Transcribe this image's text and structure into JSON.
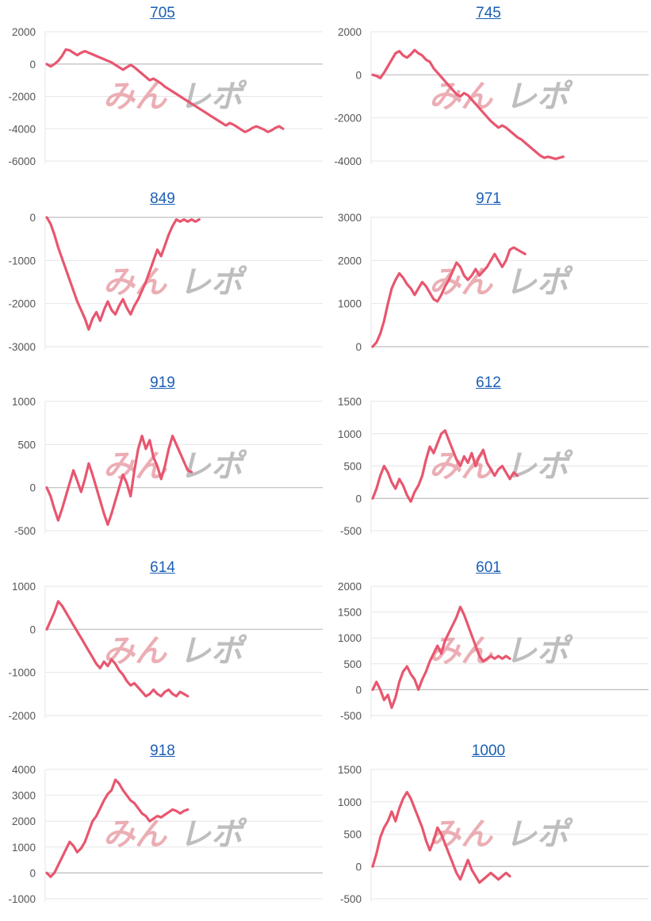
{
  "colors": {
    "line": "#e8566f",
    "grid": "#e6e6e6",
    "zero_line": "#bdbdbd",
    "title_link": "#1a5fb4",
    "tick_text": "#555555",
    "watermark_pink": "#e8a0a8",
    "watermark_gray": "#b3b3b3"
  },
  "watermark": {
    "text": "みんレポ"
  },
  "chart_data": [
    {
      "type": "line",
      "title": "705",
      "ylim": [
        -6000,
        2000
      ],
      "yticks": [
        "2000",
        "0",
        "-2000",
        "-4000",
        "-6000"
      ],
      "ytick_values": [
        2000,
        0,
        -2000,
        -4000,
        -6000
      ],
      "grid": true,
      "x": [
        0,
        5,
        10,
        15,
        20,
        25,
        30,
        35,
        40,
        45,
        50,
        55,
        60,
        65,
        70,
        75,
        80,
        85,
        90,
        95,
        100,
        105,
        110,
        115,
        120,
        125,
        130,
        135,
        140,
        145,
        150,
        155,
        160,
        165,
        170,
        175,
        180,
        185,
        190,
        195,
        200,
        205,
        210,
        215,
        220,
        225,
        230,
        235,
        240,
        245,
        250,
        255,
        260,
        265,
        270,
        275,
        280,
        285,
        290,
        295,
        300,
        305,
        310
      ],
      "values": [
        0,
        -150,
        0,
        200,
        500,
        900,
        850,
        700,
        550,
        700,
        800,
        700,
        600,
        500,
        400,
        300,
        200,
        100,
        -50,
        -200,
        -350,
        -200,
        -50,
        -200,
        -400,
        -600,
        -800,
        -1000,
        -900,
        -1050,
        -1200,
        -1400,
        -1550,
        -1700,
        -1850,
        -2000,
        -2150,
        -2300,
        -2450,
        -2600,
        -2750,
        -2900,
        -3050,
        -3200,
        -3350,
        -3500,
        -3650,
        -3800,
        -3650,
        -3750,
        -3900,
        -4050,
        -4200,
        -4100,
        -3950,
        -3850,
        -3950,
        -4050,
        -4200,
        -4100,
        -3950,
        -3850,
        -4000
      ]
    },
    {
      "type": "line",
      "title": "745",
      "ylim": [
        -4000,
        2000
      ],
      "yticks": [
        "2000",
        "0",
        "-2000",
        "-4000"
      ],
      "ytick_values": [
        2000,
        0,
        -2000,
        -4000
      ],
      "grid": true,
      "x": [
        0,
        5,
        10,
        15,
        20,
        25,
        30,
        35,
        40,
        45,
        50,
        55,
        60,
        65,
        70,
        75,
        80,
        85,
        90,
        95,
        100,
        105,
        110,
        115,
        120,
        125,
        130,
        135,
        140,
        145,
        150,
        155,
        160,
        165,
        170,
        175,
        180,
        185,
        190,
        195,
        200,
        205,
        210,
        215,
        220,
        225,
        230,
        235,
        240,
        245,
        250
      ],
      "values": [
        0,
        -50,
        -150,
        100,
        400,
        700,
        1000,
        1100,
        900,
        800,
        950,
        1150,
        1000,
        900,
        700,
        600,
        300,
        100,
        -100,
        -300,
        -500,
        -700,
        -900,
        -1000,
        -850,
        -950,
        -1150,
        -1350,
        -1550,
        -1750,
        -1950,
        -2150,
        -2300,
        -2450,
        -2350,
        -2450,
        -2600,
        -2750,
        -2900,
        -3000,
        -3150,
        -3300,
        -3450,
        -3600,
        -3750,
        -3850,
        -3800,
        -3850,
        -3900,
        -3850,
        -3800
      ]
    },
    {
      "type": "line",
      "title": "849",
      "ylim": [
        -3000,
        0
      ],
      "yticks": [
        "0",
        "-1000",
        "-2000",
        "-3000"
      ],
      "ytick_values": [
        0,
        -1000,
        -2000,
        -3000
      ],
      "grid": true,
      "x": [
        0,
        5,
        10,
        15,
        20,
        25,
        30,
        35,
        40,
        45,
        50,
        55,
        60,
        65,
        70,
        75,
        80,
        85,
        90,
        95,
        100,
        105,
        110,
        115,
        120,
        125,
        130,
        135,
        140,
        145,
        150,
        155,
        160,
        165,
        170,
        175,
        180,
        185,
        190,
        195,
        200
      ],
      "values": [
        0,
        -150,
        -400,
        -700,
        -950,
        -1200,
        -1450,
        -1700,
        -1950,
        -2150,
        -2350,
        -2600,
        -2350,
        -2200,
        -2400,
        -2150,
        -1950,
        -2150,
        -2250,
        -2050,
        -1900,
        -2100,
        -2250,
        -2050,
        -1900,
        -1700,
        -1500,
        -1250,
        -1000,
        -750,
        -900,
        -650,
        -400,
        -200,
        -50,
        -100,
        -50,
        -100,
        -50,
        -100,
        -50
      ]
    },
    {
      "type": "line",
      "title": "971",
      "ylim": [
        0,
        3000
      ],
      "yticks": [
        "3000",
        "2000",
        "1000",
        "0"
      ],
      "ytick_values": [
        3000,
        2000,
        1000,
        0
      ],
      "grid": true,
      "x": [
        0,
        5,
        10,
        15,
        20,
        25,
        30,
        35,
        40,
        45,
        50,
        55,
        60,
        65,
        70,
        75,
        80,
        85,
        90,
        95,
        100,
        105,
        110,
        115,
        120,
        125,
        130,
        135,
        140,
        145,
        150,
        155,
        160,
        165,
        170,
        175,
        180,
        185,
        190,
        195,
        200
      ],
      "values": [
        0,
        100,
        300,
        600,
        1000,
        1350,
        1550,
        1700,
        1600,
        1450,
        1350,
        1200,
        1350,
        1500,
        1400,
        1250,
        1100,
        1050,
        1200,
        1400,
        1550,
        1750,
        1950,
        1850,
        1650,
        1550,
        1650,
        1800,
        1650,
        1750,
        1850,
        2000,
        2150,
        2000,
        1850,
        2000,
        2250,
        2300,
        2250,
        2200,
        2150
      ]
    },
    {
      "type": "line",
      "title": "919",
      "ylim": [
        -500,
        1000
      ],
      "yticks": [
        "1000",
        "500",
        "0",
        "-500"
      ],
      "ytick_values": [
        1000,
        500,
        0,
        -500
      ],
      "grid": true,
      "x": [
        0,
        5,
        10,
        15,
        20,
        25,
        30,
        35,
        40,
        45,
        50,
        55,
        60,
        65,
        70,
        75,
        80,
        85,
        90,
        95,
        100,
        105,
        110,
        115,
        120,
        125,
        130,
        135,
        140,
        145,
        150,
        155,
        160,
        165,
        170,
        175,
        180,
        185,
        190
      ],
      "values": [
        0,
        -100,
        -250,
        -380,
        -250,
        -100,
        50,
        200,
        80,
        -50,
        100,
        280,
        150,
        0,
        -150,
        -300,
        -430,
        -300,
        -150,
        0,
        150,
        50,
        -100,
        200,
        450,
        600,
        450,
        550,
        350,
        250,
        100,
        250,
        450,
        600,
        500,
        400,
        300,
        200,
        180
      ]
    },
    {
      "type": "line",
      "title": "612",
      "ylim": [
        -500,
        1500
      ],
      "yticks": [
        "1500",
        "1000",
        "500",
        "0",
        "-500"
      ],
      "ytick_values": [
        1500,
        1000,
        500,
        0,
        -500
      ],
      "grid": true,
      "x": [
        0,
        5,
        10,
        15,
        20,
        25,
        30,
        35,
        40,
        45,
        50,
        55,
        60,
        65,
        70,
        75,
        80,
        85,
        90,
        95,
        100,
        105,
        110,
        115,
        120,
        125,
        130,
        135,
        140,
        145,
        150,
        155,
        160,
        165,
        170,
        175,
        180,
        185,
        190
      ],
      "values": [
        0,
        150,
        350,
        500,
        400,
        250,
        150,
        300,
        200,
        50,
        -50,
        100,
        200,
        350,
        600,
        800,
        700,
        850,
        1000,
        1050,
        900,
        750,
        600,
        500,
        650,
        550,
        700,
        500,
        650,
        750,
        550,
        450,
        350,
        450,
        500,
        400,
        300,
        400,
        350
      ]
    },
    {
      "type": "line",
      "title": "614",
      "ylim": [
        -2000,
        1000
      ],
      "yticks": [
        "1000",
        "0",
        "-1000",
        "-2000"
      ],
      "ytick_values": [
        1000,
        0,
        -1000,
        -2000
      ],
      "grid": true,
      "x": [
        0,
        5,
        10,
        15,
        20,
        25,
        30,
        35,
        40,
        45,
        50,
        55,
        60,
        65,
        70,
        75,
        80,
        85,
        90,
        95,
        100,
        105,
        110,
        115,
        120,
        125,
        130,
        135,
        140,
        145,
        150,
        155,
        160,
        165,
        170,
        175,
        180,
        185
      ],
      "values": [
        0,
        200,
        400,
        650,
        550,
        400,
        250,
        100,
        -50,
        -200,
        -350,
        -500,
        -650,
        -800,
        -900,
        -750,
        -850,
        -700,
        -800,
        -950,
        -1050,
        -1200,
        -1300,
        -1250,
        -1350,
        -1450,
        -1550,
        -1500,
        -1400,
        -1500,
        -1550,
        -1450,
        -1400,
        -1500,
        -1550,
        -1450,
        -1500,
        -1550
      ]
    },
    {
      "type": "line",
      "title": "601",
      "ylim": [
        -500,
        2000
      ],
      "yticks": [
        "2000",
        "1500",
        "1000",
        "500",
        "0",
        "-500"
      ],
      "ytick_values": [
        2000,
        1500,
        1000,
        500,
        0,
        -500
      ],
      "grid": true,
      "x": [
        0,
        5,
        10,
        15,
        20,
        25,
        30,
        35,
        40,
        45,
        50,
        55,
        60,
        65,
        70,
        75,
        80,
        85,
        90,
        95,
        100,
        105,
        110,
        115,
        120,
        125,
        130,
        135,
        140,
        145,
        150,
        155,
        160,
        165,
        170,
        175,
        180
      ],
      "values": [
        0,
        150,
        0,
        -200,
        -100,
        -350,
        -150,
        150,
        350,
        450,
        300,
        200,
        0,
        200,
        350,
        550,
        700,
        850,
        700,
        950,
        1100,
        1250,
        1400,
        1600,
        1450,
        1250,
        1050,
        850,
        650,
        550,
        600,
        650,
        600,
        650,
        600,
        650,
        600
      ]
    },
    {
      "type": "line",
      "title": "918",
      "ylim": [
        -1000,
        4000
      ],
      "yticks": [
        "4000",
        "3000",
        "2000",
        "1000",
        "0",
        "-1000"
      ],
      "ytick_values": [
        4000,
        3000,
        2000,
        1000,
        0,
        -1000
      ],
      "grid": true,
      "x": [
        0,
        5,
        10,
        15,
        20,
        25,
        30,
        35,
        40,
        45,
        50,
        55,
        60,
        65,
        70,
        75,
        80,
        85,
        90,
        95,
        100,
        105,
        110,
        115,
        120,
        125,
        130,
        135,
        140,
        145,
        150,
        155,
        160,
        165,
        170,
        175,
        180,
        185
      ],
      "values": [
        0,
        -150,
        0,
        300,
        600,
        900,
        1200,
        1050,
        800,
        950,
        1200,
        1600,
        2000,
        2200,
        2500,
        2800,
        3050,
        3200,
        3600,
        3450,
        3200,
        3000,
        2800,
        2700,
        2500,
        2300,
        2200,
        2000,
        2100,
        2200,
        2150,
        2250,
        2350,
        2450,
        2400,
        2300,
        2400,
        2450
      ]
    },
    {
      "type": "line",
      "title": "1000",
      "ylim": [
        -500,
        1500
      ],
      "yticks": [
        "1500",
        "1000",
        "500",
        "0",
        "-500"
      ],
      "ytick_values": [
        1500,
        1000,
        500,
        0,
        -500
      ],
      "grid": true,
      "x": [
        0,
        5,
        10,
        15,
        20,
        25,
        30,
        35,
        40,
        45,
        50,
        55,
        60,
        65,
        70,
        75,
        80,
        85,
        90,
        95,
        100,
        105,
        110,
        115,
        120,
        125,
        130,
        135,
        140,
        145,
        150,
        155,
        160,
        165,
        170,
        175,
        180
      ],
      "values": [
        0,
        200,
        450,
        600,
        700,
        850,
        700,
        900,
        1050,
        1150,
        1050,
        900,
        750,
        600,
        400,
        250,
        400,
        600,
        500,
        350,
        200,
        50,
        -100,
        -200,
        -50,
        100,
        -50,
        -150,
        -250,
        -200,
        -150,
        -100,
        -150,
        -200,
        -150,
        -100,
        -150
      ]
    }
  ]
}
